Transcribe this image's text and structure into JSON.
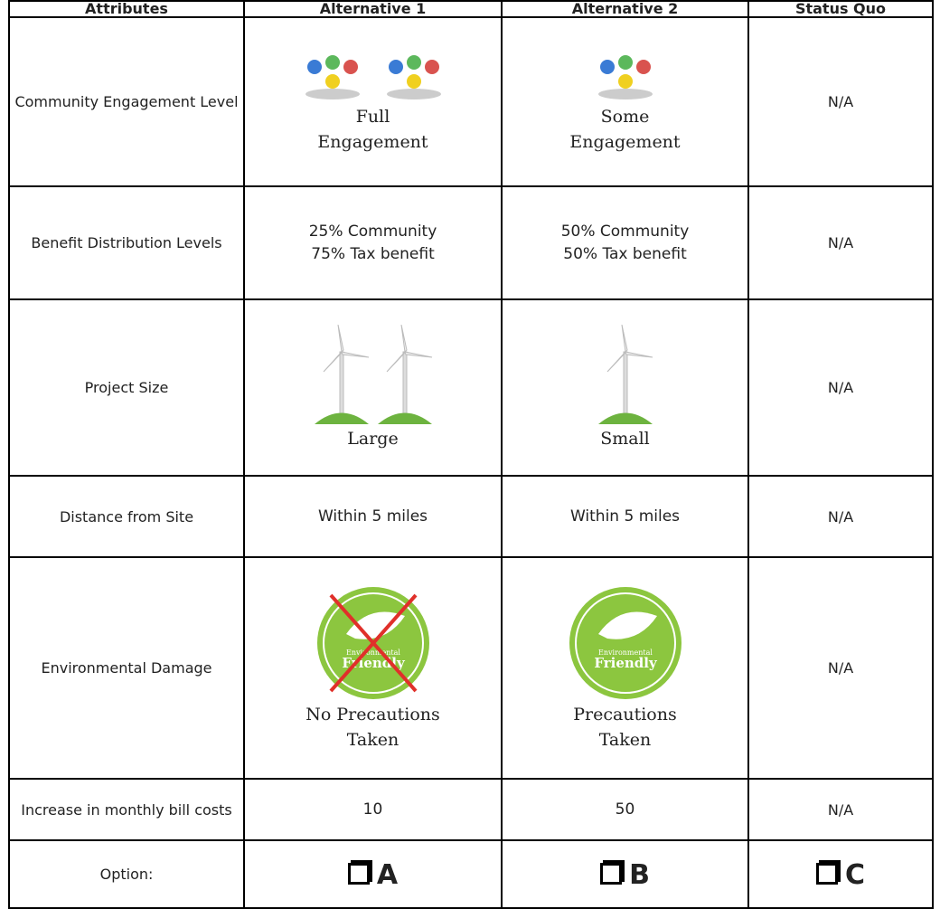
{
  "table": {
    "header": [
      "Attributes",
      "Alternative 1",
      "Alternative 2",
      "Status Quo"
    ],
    "rows": [
      [
        "Community Engagement Level",
        "Full Engagement",
        "Some Engagement",
        "N/A"
      ],
      [
        "Benefit Distribution Levels",
        [
          "25% Community",
          "75% Tax benefit"
        ],
        [
          "50% Community",
          "50% Tax benefit"
        ],
        "N/A"
      ],
      [
        "Project Size",
        "Large",
        "Small",
        "N/A"
      ],
      [
        "Distance from Site",
        "Within 5 miles",
        "Within 5 miles",
        "N/A"
      ],
      [
        "Environmental Damage",
        "No Precautions Taken",
        "Precautions Taken",
        "N/A"
      ],
      [
        "Increase in monthly bill costs",
        10,
        50,
        "N/A"
      ],
      [
        "Option:",
        "A",
        "B",
        "C"
      ]
    ],
    "logo": [
      "Environmental",
      "Friendly"
    ]
  }
}
